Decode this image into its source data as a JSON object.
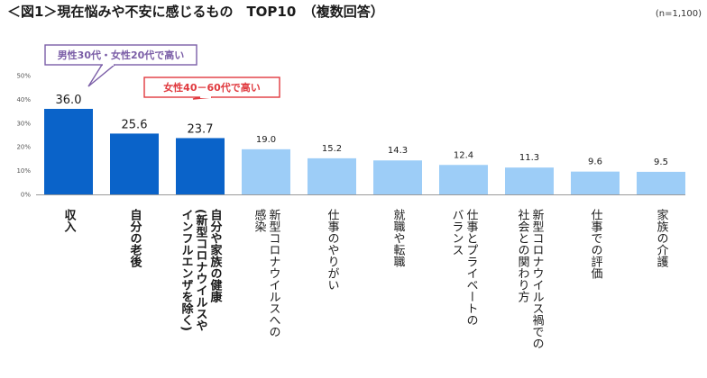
{
  "title": "＜図1＞現在悩みや不安に感じるもの　TOP10　（複数回答）",
  "sample_note": "(n=1,100)",
  "callouts": [
    {
      "text": "男性30代・女性20代で高い",
      "color": "#7b5ea7",
      "target_index": 0
    },
    {
      "text": "女性40－60代で高い",
      "color": "#e0393e",
      "target_index": 2
    }
  ],
  "colors": {
    "dark_bar": "#0a63c9",
    "light_bar": "#9dcdf7",
    "axis": "#999999",
    "tick_text": "#555555"
  },
  "chart_data": {
    "type": "bar",
    "title": "＜図1＞現在悩みや不安に感じるもの　TOP10　（複数回答）",
    "xlabel": "",
    "ylabel": "",
    "ylim": [
      0,
      50
    ],
    "yticks": [
      "0%",
      "10%",
      "20%",
      "30%",
      "40%",
      "50%"
    ],
    "grid": false,
    "categories": [
      "収入",
      "自分の老後",
      "自分や家族の健康(新型コロナウイルスやインフルエンザを除く)",
      "新型コロナウイルスへの感染",
      "仕事のやりがい",
      "就職や転職",
      "仕事とプライベートのバランス",
      "新型コロナウイルス禍での社会との関わり方",
      "仕事での評価",
      "家族の介護"
    ],
    "category_lines": [
      [
        "収入"
      ],
      [
        "自分の老後"
      ],
      [
        "自分や家族の健康",
        "(新型コロナウイルスや",
        "インフルエンザを除く)"
      ],
      [
        "新型コロナウイルスへの",
        "感染"
      ],
      [
        "仕事のやりがい"
      ],
      [
        "就職や転職"
      ],
      [
        "仕事とプライベートの",
        "バランス"
      ],
      [
        "新型コロナウイルス禍での",
        "社会との関わり方"
      ],
      [
        "仕事での評価"
      ],
      [
        "家族の介護"
      ]
    ],
    "highlight_top": 3,
    "values": [
      36.0,
      25.6,
      23.7,
      19.0,
      15.2,
      14.3,
      12.4,
      11.3,
      9.6,
      9.5
    ],
    "value_labels": [
      "36.0",
      "25.6",
      "23.7",
      "19.0",
      "15.2",
      "14.3",
      "12.4",
      "11.3",
      "9.6",
      "9.5"
    ]
  }
}
